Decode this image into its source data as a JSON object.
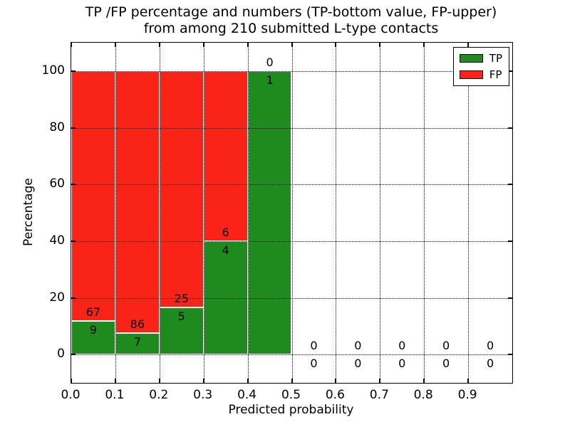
{
  "figure": {
    "title_line1": "TP /FP percentage and numbers (TP-bottom value, FP-upper)",
    "title_line2": "from among 210 submitted L-type contacts"
  },
  "chart_data": {
    "type": "bar",
    "stacked": true,
    "title": "TP /FP percentage and numbers (TP-bottom value, FP-upper)\nfrom among 210 submitted L-type contacts",
    "xlabel": "Predicted probability",
    "ylabel": "Percentage",
    "xlim": [
      0.0,
      1.0
    ],
    "ylim": [
      -10,
      110
    ],
    "xtick_values": [
      0.0,
      0.1,
      0.2,
      0.3,
      0.4,
      0.5,
      0.6,
      0.7,
      0.8,
      0.9
    ],
    "xtick_labels": [
      "0.0",
      "0.1",
      "0.2",
      "0.3",
      "0.4",
      "0.5",
      "0.6",
      "0.7",
      "0.8",
      "0.9"
    ],
    "ytick_values": [
      0,
      20,
      40,
      60,
      80,
      100
    ],
    "ytick_labels": [
      "0",
      "20",
      "40",
      "60",
      "80",
      "100"
    ],
    "grid": {
      "visible": true,
      "style": "dotted",
      "color": "#000000",
      "above_bars": true
    },
    "colors": {
      "tp": "#1f8b1f",
      "fp": "#fa2318",
      "background": "#ffffff",
      "text": "#000000"
    },
    "legend": {
      "position": "upper-right",
      "entries": [
        {
          "label": "TP",
          "color_key": "tp"
        },
        {
          "label": "FP",
          "color_key": "fp"
        }
      ]
    },
    "total_contacts": 210,
    "bin_width": 0.1,
    "annotation_note": "FP count shown above the TP/FP boundary, TP count shown below it",
    "bins": [
      {
        "x0": 0.0,
        "x1": 0.1,
        "tp_count": 9,
        "fp_count": 67,
        "tp_pct": 11.84,
        "fp_pct": 88.16
      },
      {
        "x0": 0.1,
        "x1": 0.2,
        "tp_count": 7,
        "fp_count": 86,
        "tp_pct": 7.53,
        "fp_pct": 92.47
      },
      {
        "x0": 0.2,
        "x1": 0.3,
        "tp_count": 5,
        "fp_count": 25,
        "tp_pct": 16.67,
        "fp_pct": 83.33
      },
      {
        "x0": 0.3,
        "x1": 0.4,
        "tp_count": 4,
        "fp_count": 6,
        "tp_pct": 40.0,
        "fp_pct": 60.0
      },
      {
        "x0": 0.4,
        "x1": 0.5,
        "tp_count": 1,
        "fp_count": 0,
        "tp_pct": 100.0,
        "fp_pct": 0.0
      },
      {
        "x0": 0.5,
        "x1": 0.6,
        "tp_count": 0,
        "fp_count": 0,
        "tp_pct": 0.0,
        "fp_pct": 0.0
      },
      {
        "x0": 0.6,
        "x1": 0.7,
        "tp_count": 0,
        "fp_count": 0,
        "tp_pct": 0.0,
        "fp_pct": 0.0
      },
      {
        "x0": 0.7,
        "x1": 0.8,
        "tp_count": 0,
        "fp_count": 0,
        "tp_pct": 0.0,
        "fp_pct": 0.0
      },
      {
        "x0": 0.8,
        "x1": 0.9,
        "tp_count": 0,
        "fp_count": 0,
        "tp_pct": 0.0,
        "fp_pct": 0.0
      },
      {
        "x0": 0.9,
        "x1": 1.0,
        "tp_count": 0,
        "fp_count": 0,
        "tp_pct": 0.0,
        "fp_pct": 0.0
      }
    ]
  }
}
